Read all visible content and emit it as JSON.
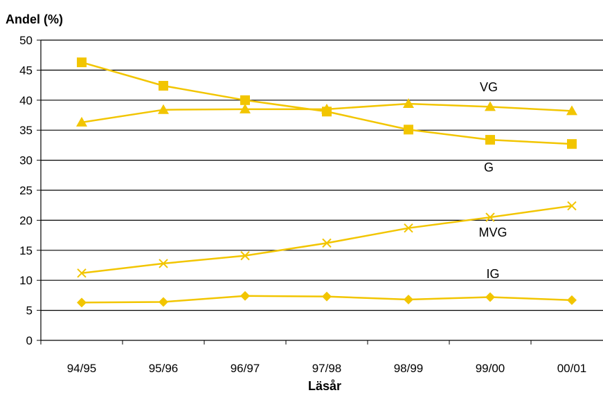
{
  "chart_data": {
    "type": "line",
    "title": "",
    "xlabel": "Läsår",
    "ylabel": "Andel (%)",
    "categories": [
      "94/95",
      "95/96",
      "96/97",
      "97/98",
      "98/99",
      "99/00",
      "00/01"
    ],
    "ylim": [
      0,
      50
    ],
    "yticks": [
      0,
      5,
      10,
      15,
      20,
      25,
      30,
      35,
      40,
      45,
      50
    ],
    "grid": "horizontal",
    "legend": "none",
    "color": "#f2c500",
    "series": [
      {
        "name": "G",
        "marker": "square",
        "values": [
          46.3,
          42.4,
          40.0,
          38.1,
          35.1,
          33.4,
          32.7
        ]
      },
      {
        "name": "VG",
        "marker": "triangle",
        "values": [
          36.3,
          38.4,
          38.5,
          38.5,
          39.4,
          38.9,
          38.2
        ]
      },
      {
        "name": "MVG",
        "marker": "x",
        "values": [
          11.2,
          12.8,
          14.1,
          16.2,
          18.7,
          20.5,
          22.4
        ]
      },
      {
        "name": "IG",
        "marker": "diamond",
        "values": [
          6.3,
          6.4,
          7.4,
          7.3,
          6.8,
          7.2,
          6.7
        ]
      }
    ]
  }
}
